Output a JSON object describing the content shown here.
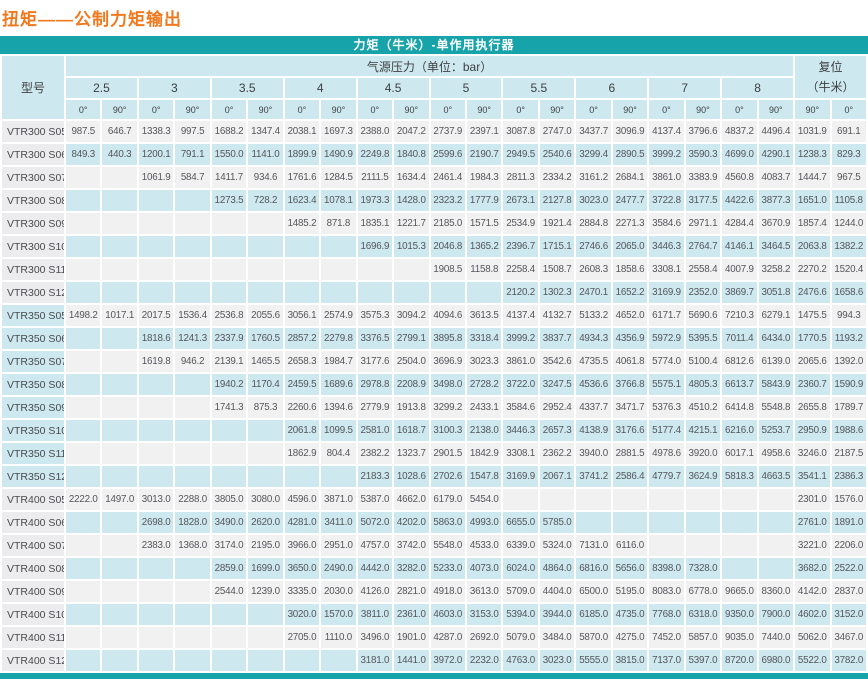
{
  "page_title": "扭矩——公制力矩输出",
  "colors": {
    "accent_teal": "#16a3a9",
    "header_blue": "#cde8ef",
    "row_gray": "#f1f1f2",
    "title_orange": "#f0791e"
  },
  "table": {
    "title_bar": "力矩（牛米）-单作用执行器",
    "header": {
      "model_label": "型号",
      "pressure_label": "气源压力（单位：bar）",
      "reset_label_line1": "复位",
      "reset_label_line2": "（牛米）",
      "pressures": [
        "2.5",
        "3",
        "3.5",
        "4",
        "4.5",
        "5",
        "5.5",
        "6",
        "7",
        "8"
      ],
      "angle_labels": [
        "0°",
        "90°"
      ],
      "reset_angle_labels": [
        "90°",
        "0°"
      ]
    },
    "rows": [
      {
        "model": "VTR300 S05",
        "values": [
          "987.5",
          "646.7",
          "1338.3",
          "997.5",
          "1688.2",
          "1347.4",
          "2038.1",
          "1697.3",
          "2388.0",
          "2047.2",
          "2737.9",
          "2397.1",
          "3087.8",
          "2747.0",
          "3437.7",
          "3096.9",
          "4137.4",
          "3796.6",
          "4837.2",
          "4496.4",
          "1031.9",
          "691.1"
        ]
      },
      {
        "model": "VTR300 S06",
        "values": [
          "849.3",
          "440.3",
          "1200.1",
          "791.1",
          "1550.0",
          "1141.0",
          "1899.9",
          "1490.9",
          "2249.8",
          "1840.8",
          "2599.6",
          "2190.7",
          "2949.5",
          "2540.6",
          "3299.4",
          "2890.5",
          "3999.2",
          "3590.3",
          "4699.0",
          "4290.1",
          "1238.3",
          "829.3"
        ]
      },
      {
        "model": "VTR300 S07",
        "values": [
          "",
          "",
          "1061.9",
          "584.7",
          "1411.7",
          "934.6",
          "1761.6",
          "1284.5",
          "2111.5",
          "1634.4",
          "2461.4",
          "1984.3",
          "2811.3",
          "2334.2",
          "3161.2",
          "2684.1",
          "3861.0",
          "3383.9",
          "4560.8",
          "4083.7",
          "1444.7",
          "967.5"
        ]
      },
      {
        "model": "VTR300 S08",
        "values": [
          "",
          "",
          "",
          "",
          "1273.5",
          "728.2",
          "1623.4",
          "1078.1",
          "1973.3",
          "1428.0",
          "2323.2",
          "1777.9",
          "2673.1",
          "2127.8",
          "3023.0",
          "2477.7",
          "3722.8",
          "3177.5",
          "4422.6",
          "3877.3",
          "1651.0",
          "1105.8"
        ]
      },
      {
        "model": "VTR300 S09",
        "values": [
          "",
          "",
          "",
          "",
          "",
          "",
          "1485.2",
          "871.8",
          "1835.1",
          "1221.7",
          "2185.0",
          "1571.5",
          "2534.9",
          "1921.4",
          "2884.8",
          "2271.3",
          "3584.6",
          "2971.1",
          "4284.4",
          "3670.9",
          "1857.4",
          "1244.0"
        ]
      },
      {
        "model": "VTR300 S10",
        "values": [
          "",
          "",
          "",
          "",
          "",
          "",
          "",
          "",
          "1696.9",
          "1015.3",
          "2046.8",
          "1365.2",
          "2396.7",
          "1715.1",
          "2746.6",
          "2065.0",
          "3446.3",
          "2764.7",
          "4146.1",
          "3464.5",
          "2063.8",
          "1382.2"
        ]
      },
      {
        "model": "VTR300 S11",
        "values": [
          "",
          "",
          "",
          "",
          "",
          "",
          "",
          "",
          "",
          "",
          "1908.5",
          "1158.8",
          "2258.4",
          "1508.7",
          "2608.3",
          "1858.6",
          "3308.1",
          "2558.4",
          "4007.9",
          "3258.2",
          "2270.2",
          "1520.4"
        ]
      },
      {
        "model": "VTR300 S12",
        "values": [
          "",
          "",
          "",
          "",
          "",
          "",
          "",
          "",
          "",
          "",
          "",
          "",
          "2120.2",
          "1302.3",
          "2470.1",
          "1652.2",
          "3169.9",
          "2352.0",
          "3869.7",
          "3051.8",
          "2476.6",
          "1658.6"
        ]
      },
      {
        "model": "VTR350 S05",
        "values": [
          "1498.2",
          "1017.1",
          "2017.5",
          "1536.4",
          "2536.8",
          "2055.6",
          "3056.1",
          "2574.9",
          "3575.3",
          "3094.2",
          "4094.6",
          "3613.5",
          "4137.4",
          "4132.7",
          "5133.2",
          "4652.0",
          "6171.7",
          "5690.6",
          "7210.3",
          "6279.1",
          "1475.5",
          "994.3"
        ]
      },
      {
        "model": "VTR350 S06",
        "values": [
          "",
          "",
          "1818.6",
          "1241.3",
          "2337.9",
          "1760.5",
          "2857.2",
          "2279.8",
          "3376.5",
          "2799.1",
          "3895.8",
          "3318.4",
          "3999.2",
          "3837.7",
          "4934.3",
          "4356.9",
          "5972.9",
          "5395.5",
          "7011.4",
          "6434.0",
          "1770.5",
          "1193.2"
        ]
      },
      {
        "model": "VTR350 S07",
        "values": [
          "",
          "",
          "1619.8",
          "946.2",
          "2139.1",
          "1465.5",
          "2658.3",
          "1984.7",
          "3177.6",
          "2504.0",
          "3696.9",
          "3023.3",
          "3861.0",
          "3542.6",
          "4735.5",
          "4061.8",
          "5774.0",
          "5100.4",
          "6812.6",
          "6139.0",
          "2065.6",
          "1392.0"
        ]
      },
      {
        "model": "VTR350 S08",
        "values": [
          "",
          "",
          "",
          "",
          "1940.2",
          "1170.4",
          "2459.5",
          "1689.6",
          "2978.8",
          "2208.9",
          "3498.0",
          "2728.2",
          "3722.0",
          "3247.5",
          "4536.6",
          "3766.8",
          "5575.1",
          "4805.3",
          "6613.7",
          "5843.9",
          "2360.7",
          "1590.9"
        ]
      },
      {
        "model": "VTR350 S09",
        "values": [
          "",
          "",
          "",
          "",
          "1741.3",
          "875.3",
          "2260.6",
          "1394.6",
          "2779.9",
          "1913.8",
          "3299.2",
          "2433.1",
          "3584.6",
          "2952.4",
          "4337.7",
          "3471.7",
          "5376.3",
          "4510.2",
          "6414.8",
          "5548.8",
          "2655.8",
          "1789.7"
        ]
      },
      {
        "model": "VTR350 S10",
        "values": [
          "",
          "",
          "",
          "",
          "",
          "",
          "2061.8",
          "1099.5",
          "2581.0",
          "1618.7",
          "3100.3",
          "2138.0",
          "3446.3",
          "2657.3",
          "4138.9",
          "3176.6",
          "5177.4",
          "4215.1",
          "6216.0",
          "5253.7",
          "2950.9",
          "1988.6"
        ]
      },
      {
        "model": "VTR350 S11",
        "values": [
          "",
          "",
          "",
          "",
          "",
          "",
          "1862.9",
          "804.4",
          "2382.2",
          "1323.7",
          "2901.5",
          "1842.9",
          "3308.1",
          "2362.2",
          "3940.0",
          "2881.5",
          "4978.6",
          "3920.0",
          "6017.1",
          "4958.6",
          "3246.0",
          "2187.5"
        ]
      },
      {
        "model": "VTR350 S12",
        "values": [
          "",
          "",
          "",
          "",
          "",
          "",
          "",
          "",
          "2183.3",
          "1028.6",
          "2702.6",
          "1547.8",
          "3169.9",
          "2067.1",
          "3741.2",
          "2586.4",
          "4779.7",
          "3624.9",
          "5818.3",
          "4663.5",
          "3541.1",
          "2386.3"
        ]
      },
      {
        "model": "VTR400 S05",
        "values": [
          "2222.0",
          "1497.0",
          "3013.0",
          "2288.0",
          "3805.0",
          "3080.0",
          "4596.0",
          "3871.0",
          "5387.0",
          "4662.0",
          "6179.0",
          "5454.0",
          "",
          "",
          "",
          "",
          "",
          "",
          "",
          "",
          "2301.0",
          "1576.0"
        ]
      },
      {
        "model": "VTR400 S06",
        "values": [
          "",
          "",
          "2698.0",
          "1828.0",
          "3490.0",
          "2620.0",
          "4281.0",
          "3411.0",
          "5072.0",
          "4202.0",
          "5863.0",
          "4993.0",
          "6655.0",
          "5785.0",
          "",
          "",
          "",
          "",
          "",
          "",
          "2761.0",
          "1891.0"
        ]
      },
      {
        "model": "VTR400 S07",
        "values": [
          "",
          "",
          "2383.0",
          "1368.0",
          "3174.0",
          "2195.0",
          "3966.0",
          "2951.0",
          "4757.0",
          "3742.0",
          "5548.0",
          "4533.0",
          "6339.0",
          "5324.0",
          "7131.0",
          "6116.0",
          "",
          "",
          "",
          "",
          "3221.0",
          "2206.0"
        ]
      },
      {
        "model": "VTR400 S08",
        "values": [
          "",
          "",
          "",
          "",
          "2859.0",
          "1699.0",
          "3650.0",
          "2490.0",
          "4442.0",
          "3282.0",
          "5233.0",
          "4073.0",
          "6024.0",
          "4864.0",
          "6816.0",
          "5656.0",
          "8398.0",
          "7328.0",
          "",
          "",
          "3682.0",
          "2522.0"
        ]
      },
      {
        "model": "VTR400 S09",
        "values": [
          "",
          "",
          "",
          "",
          "2544.0",
          "1239.0",
          "3335.0",
          "2030.0",
          "4126.0",
          "2821.0",
          "4918.0",
          "3613.0",
          "5709.0",
          "4404.0",
          "6500.0",
          "5195.0",
          "8083.0",
          "6778.0",
          "9665.0",
          "8360.0",
          "4142.0",
          "2837.0"
        ]
      },
      {
        "model": "VTR400 S10",
        "values": [
          "",
          "",
          "",
          "",
          "",
          "",
          "3020.0",
          "1570.0",
          "3811.0",
          "2361.0",
          "4603.0",
          "3153.0",
          "5394.0",
          "3944.0",
          "6185.0",
          "4735.0",
          "7768.0",
          "6318.0",
          "9350.0",
          "7900.0",
          "4602.0",
          "3152.0"
        ]
      },
      {
        "model": "VTR400 S11",
        "values": [
          "",
          "",
          "",
          "",
          "",
          "",
          "2705.0",
          "1110.0",
          "3496.0",
          "1901.0",
          "4287.0",
          "2692.0",
          "5079.0",
          "3484.0",
          "5870.0",
          "4275.0",
          "7452.0",
          "5857.0",
          "9035.0",
          "7440.0",
          "5062.0",
          "3467.0"
        ]
      },
      {
        "model": "VTR400 S12",
        "values": [
          "",
          "",
          "",
          "",
          "",
          "",
          "",
          "",
          "3181.0",
          "1441.0",
          "3972.0",
          "2232.0",
          "4763.0",
          "3023.0",
          "5555.0",
          "3815.0",
          "7137.0",
          "5397.0",
          "8720.0",
          "6980.0",
          "5522.0",
          "3782.0"
        ]
      }
    ]
  }
}
